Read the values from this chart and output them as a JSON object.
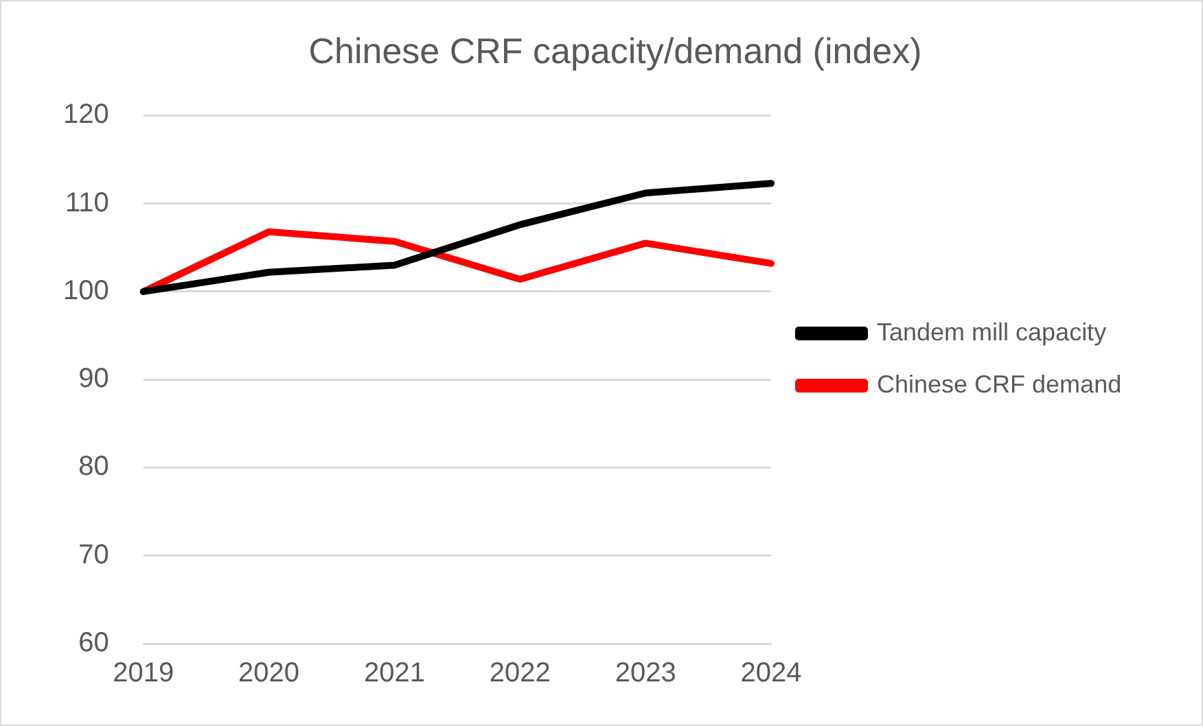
{
  "chart_data": {
    "type": "line",
    "title": "Chinese CRF capacity/demand (index)",
    "categories": [
      "2019",
      "2020",
      "2021",
      "2022",
      "2023",
      "2024"
    ],
    "series": [
      {
        "name": "Tandem mill capacity",
        "color": "#000000",
        "values": [
          100,
          102.2,
          103,
          107.6,
          111.2,
          112.3
        ]
      },
      {
        "name": "Chinese CRF demand",
        "color": "#ff0000",
        "values": [
          100,
          106.8,
          105.7,
          101.4,
          105.5,
          103.2
        ]
      }
    ],
    "ylim": [
      60,
      120
    ],
    "yticks": [
      60,
      70,
      80,
      90,
      100,
      110,
      120
    ],
    "grid": "y",
    "legend": "right",
    "marker": "none",
    "line_style": "solid"
  }
}
